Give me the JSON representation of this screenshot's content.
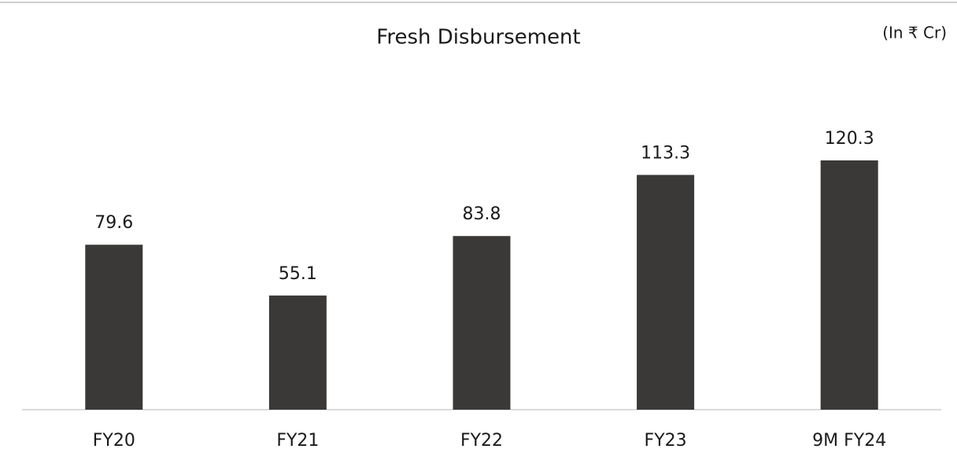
{
  "chart_data": {
    "type": "bar",
    "title": "Fresh Disbursement",
    "subtitle": "(In ₹ Cr)",
    "categories": [
      "FY20",
      "FY21",
      "FY22",
      "FY23",
      "9M FY24"
    ],
    "values": [
      79.6,
      55.1,
      83.8,
      113.3,
      120.3
    ],
    "color": "#3a3937"
  }
}
